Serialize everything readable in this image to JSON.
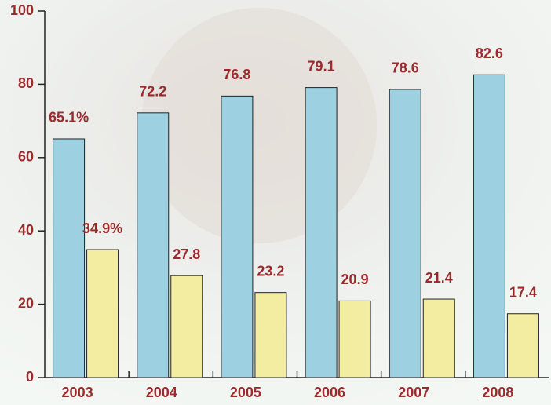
{
  "chart_data": {
    "type": "bar",
    "categories": [
      "2003",
      "2004",
      "2005",
      "2006",
      "2007",
      "2008"
    ],
    "series": [
      {
        "color": "#9dd0e0",
        "values": [
          65.1,
          72.2,
          76.8,
          79.1,
          78.6,
          82.6
        ],
        "value_labels": [
          "65.1%",
          "72.2",
          "76.8",
          "79.1",
          "78.6",
          "82.6"
        ]
      },
      {
        "color": "#f2eda0",
        "values": [
          34.9,
          27.8,
          23.2,
          20.9,
          21.4,
          17.4
        ],
        "value_labels": [
          "34.9%",
          "27.8",
          "23.2",
          "20.9",
          "21.4",
          "17.4"
        ]
      }
    ],
    "ylim": [
      0,
      100
    ],
    "yticks": [
      0,
      20,
      40,
      60,
      80,
      100
    ],
    "grid": false
  }
}
